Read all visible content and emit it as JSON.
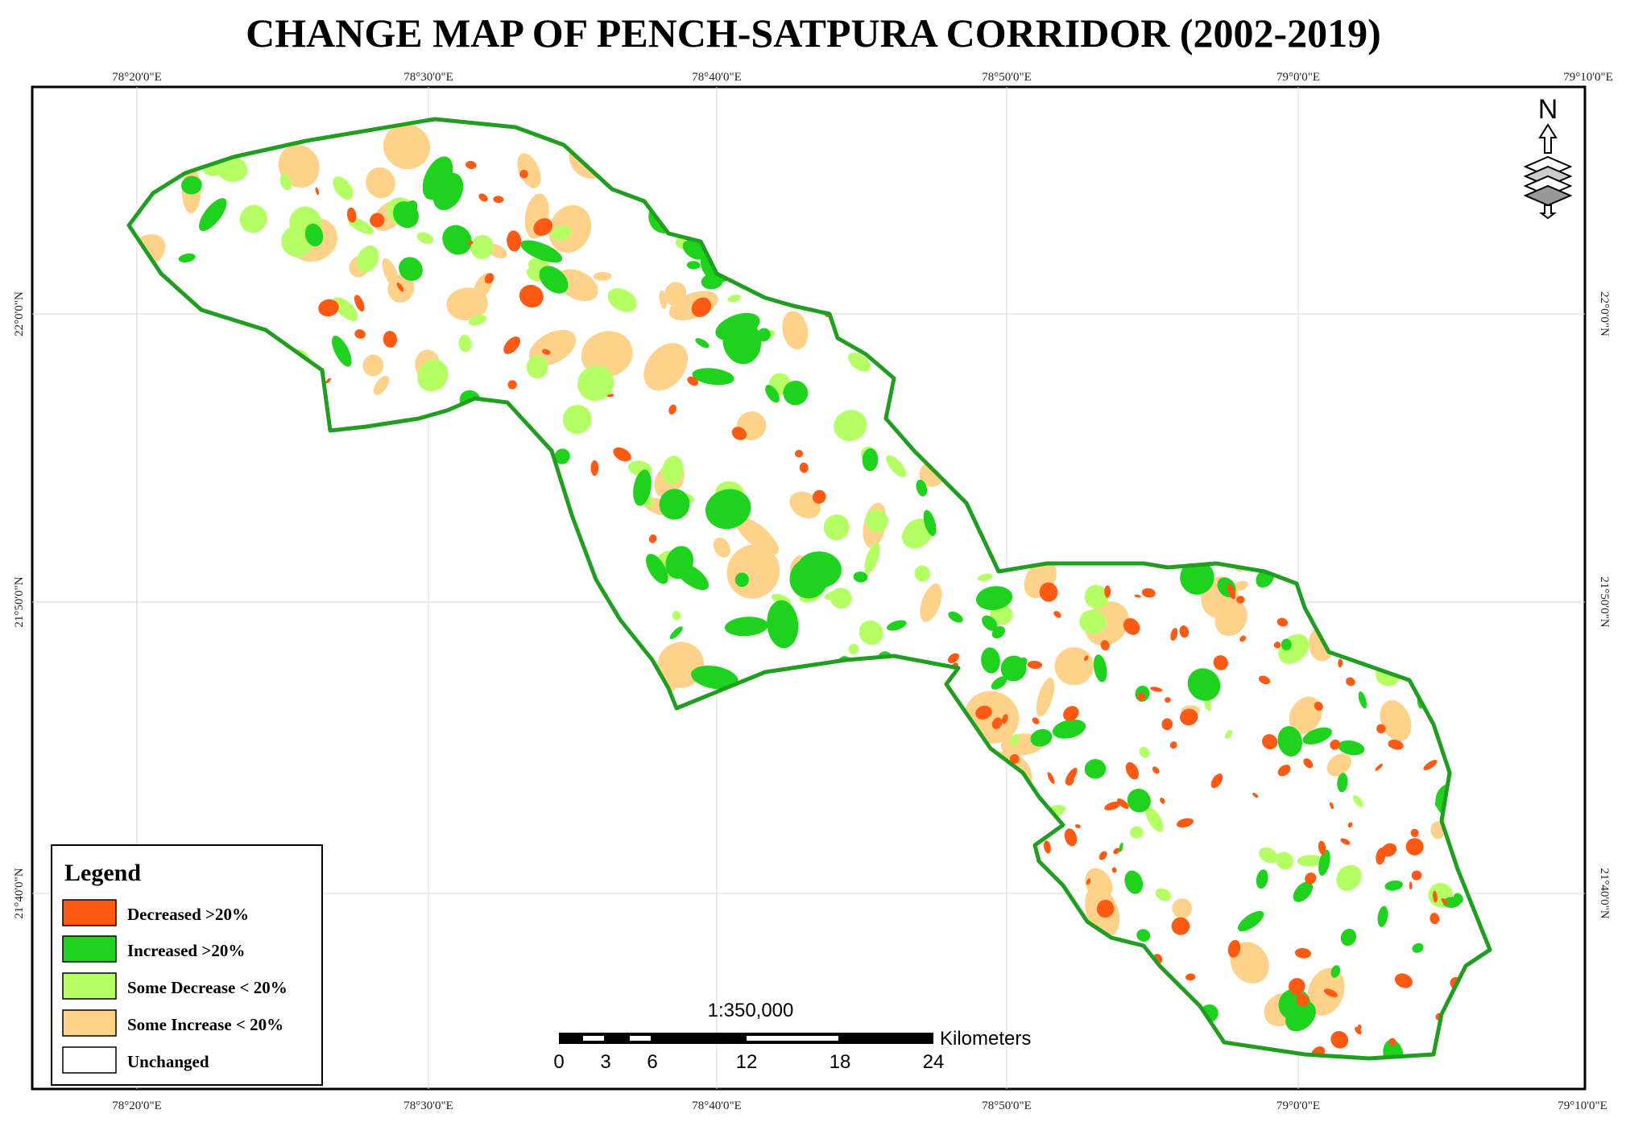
{
  "title": "CHANGE MAP OF PENCH-SATPURA CORRIDOR (2002-2019)",
  "graticule": {
    "top_labels": [
      "78°20'0\"E",
      "78°30'0\"E",
      "78°40'0\"E",
      "78°50'0\"E",
      "79°0'0\"E",
      "79°10'0\"E"
    ],
    "bottom_labels": [
      "78°20'0\"E",
      "78°30'0\"E",
      "78°40'0\"E",
      "78°50'0\"E",
      "79°0'0\"E",
      "79°10'0\"E"
    ],
    "left_labels": [
      "22°0'0\"N",
      "21°50'0\"N",
      "21°40'0\"N"
    ],
    "right_labels": [
      "22°0'0\"N",
      "21°50'0\"N",
      "21°40'0\"N"
    ]
  },
  "north_arrow": {
    "label": "N",
    "icon": "north-arrow-icon"
  },
  "legend": {
    "title": "Legend",
    "items": [
      {
        "label": "Decreased >20%",
        "color": "#ff5a14"
      },
      {
        "label": "Increased >20%",
        "color": "#1ed21e"
      },
      {
        "label": "Some Decrease < 20%",
        "color": "#b4ff64"
      },
      {
        "label": "Some Increase < 20%",
        "color": "#ffd28c"
      },
      {
        "label": "Unchanged",
        "color": "#ffffff"
      }
    ]
  },
  "scale_bar": {
    "ratio": "1:350,000",
    "unit": "Kilometers",
    "ticks": [
      "0",
      "3",
      "6",
      "12",
      "18",
      "24"
    ]
  },
  "colors": {
    "boundary": "#1f9e1f",
    "decreased": "#ff5a14",
    "increased": "#1ed21e",
    "some_decrease": "#b4ff64",
    "some_increase": "#ffd28c"
  }
}
